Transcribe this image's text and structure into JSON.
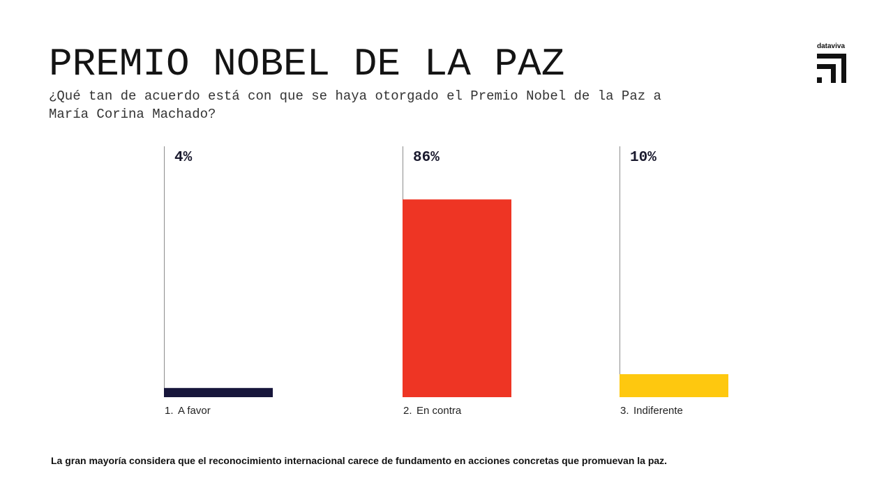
{
  "brand": {
    "name": "dataviva",
    "logo_icon": "dataviva-logo-icon",
    "color": "#111111"
  },
  "chart_data": {
    "type": "bar",
    "title": "PREMIO NOBEL DE LA PAZ",
    "subtitle": "¿Qué tan de acuerdo está con que se haya otorgado el Premio Nobel de la Paz a María Corina Machado?",
    "category_numbers": [
      "1.",
      "2.",
      "3."
    ],
    "categories": [
      "A favor",
      "En contra",
      "Indiferente"
    ],
    "values": [
      4,
      86,
      10
    ],
    "value_labels": [
      "4%",
      "86%",
      "10%"
    ],
    "colors": [
      "#17163b",
      "#ee3524",
      "#fec80f"
    ],
    "xlabel": "",
    "ylabel": "",
    "ylim": [
      0,
      100
    ],
    "grid": false
  },
  "footer": {
    "note": "La gran mayoría considera que el reconocimiento internacional carece de fundamento en acciones concretas que promuevan la paz."
  }
}
